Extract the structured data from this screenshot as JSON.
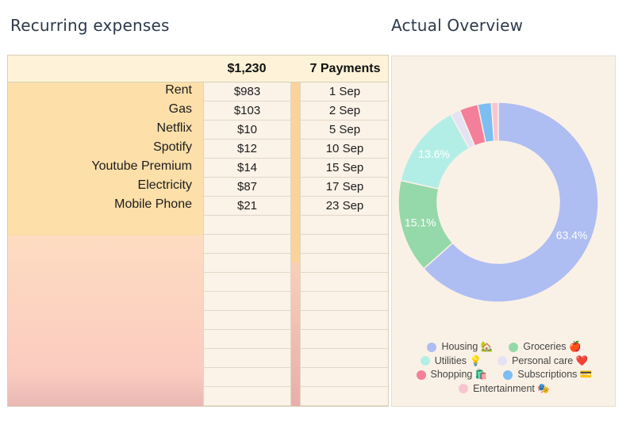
{
  "left_title": "Recurring expenses",
  "right_title": "Actual Overview",
  "sheet": {
    "total": "$1,230",
    "payments": "7 Payments",
    "rows": [
      {
        "name": "Rent",
        "amount": "$983",
        "date": "1 Sep"
      },
      {
        "name": "Gas",
        "amount": "$103",
        "date": "2 Sep"
      },
      {
        "name": "Netflix",
        "amount": "$10",
        "date": "5 Sep"
      },
      {
        "name": "Spotify",
        "amount": "$12",
        "date": "10 Sep"
      },
      {
        "name": "Youtube Premium",
        "amount": "$14",
        "date": "15 Sep"
      },
      {
        "name": "Electricity",
        "amount": "$87",
        "date": "17 Sep"
      },
      {
        "name": "Mobile Phone",
        "amount": "$21",
        "date": "23 Sep"
      },
      {
        "name": "",
        "amount": "",
        "date": ""
      },
      {
        "name": "",
        "amount": "",
        "date": ""
      },
      {
        "name": "",
        "amount": "",
        "date": ""
      },
      {
        "name": "",
        "amount": "",
        "date": ""
      },
      {
        "name": "",
        "amount": "",
        "date": ""
      },
      {
        "name": "",
        "amount": "",
        "date": ""
      },
      {
        "name": "",
        "amount": "",
        "date": ""
      },
      {
        "name": "",
        "amount": "",
        "date": ""
      },
      {
        "name": "",
        "amount": "",
        "date": ""
      },
      {
        "name": "",
        "amount": "",
        "date": ""
      }
    ]
  },
  "chart_data": {
    "type": "pie",
    "donut": true,
    "legend_position": "bottom",
    "slices": [
      {
        "name": "Housing 🏡",
        "value": 63.4,
        "label": "63.4%",
        "color": "#aebdf2"
      },
      {
        "name": "Groceries 🍎",
        "value": 15.1,
        "label": "15.1%",
        "color": "#95d8a9"
      },
      {
        "name": "Utilities 💡",
        "value": 13.6,
        "label": "13.6%",
        "color": "#b3eee6"
      },
      {
        "name": "Personal care ❤️",
        "value": 1.6,
        "label": "",
        "color": "#e6e2f6"
      },
      {
        "name": "Shopping 🛍️",
        "value": 3.0,
        "label": "",
        "color": "#f47f9a"
      },
      {
        "name": "Subscriptions 💳",
        "value": 2.2,
        "label": "",
        "color": "#7cbdf2"
      },
      {
        "name": "Entertainment 🎭",
        "value": 1.1,
        "label": "",
        "color": "#f8c5cf"
      }
    ]
  }
}
